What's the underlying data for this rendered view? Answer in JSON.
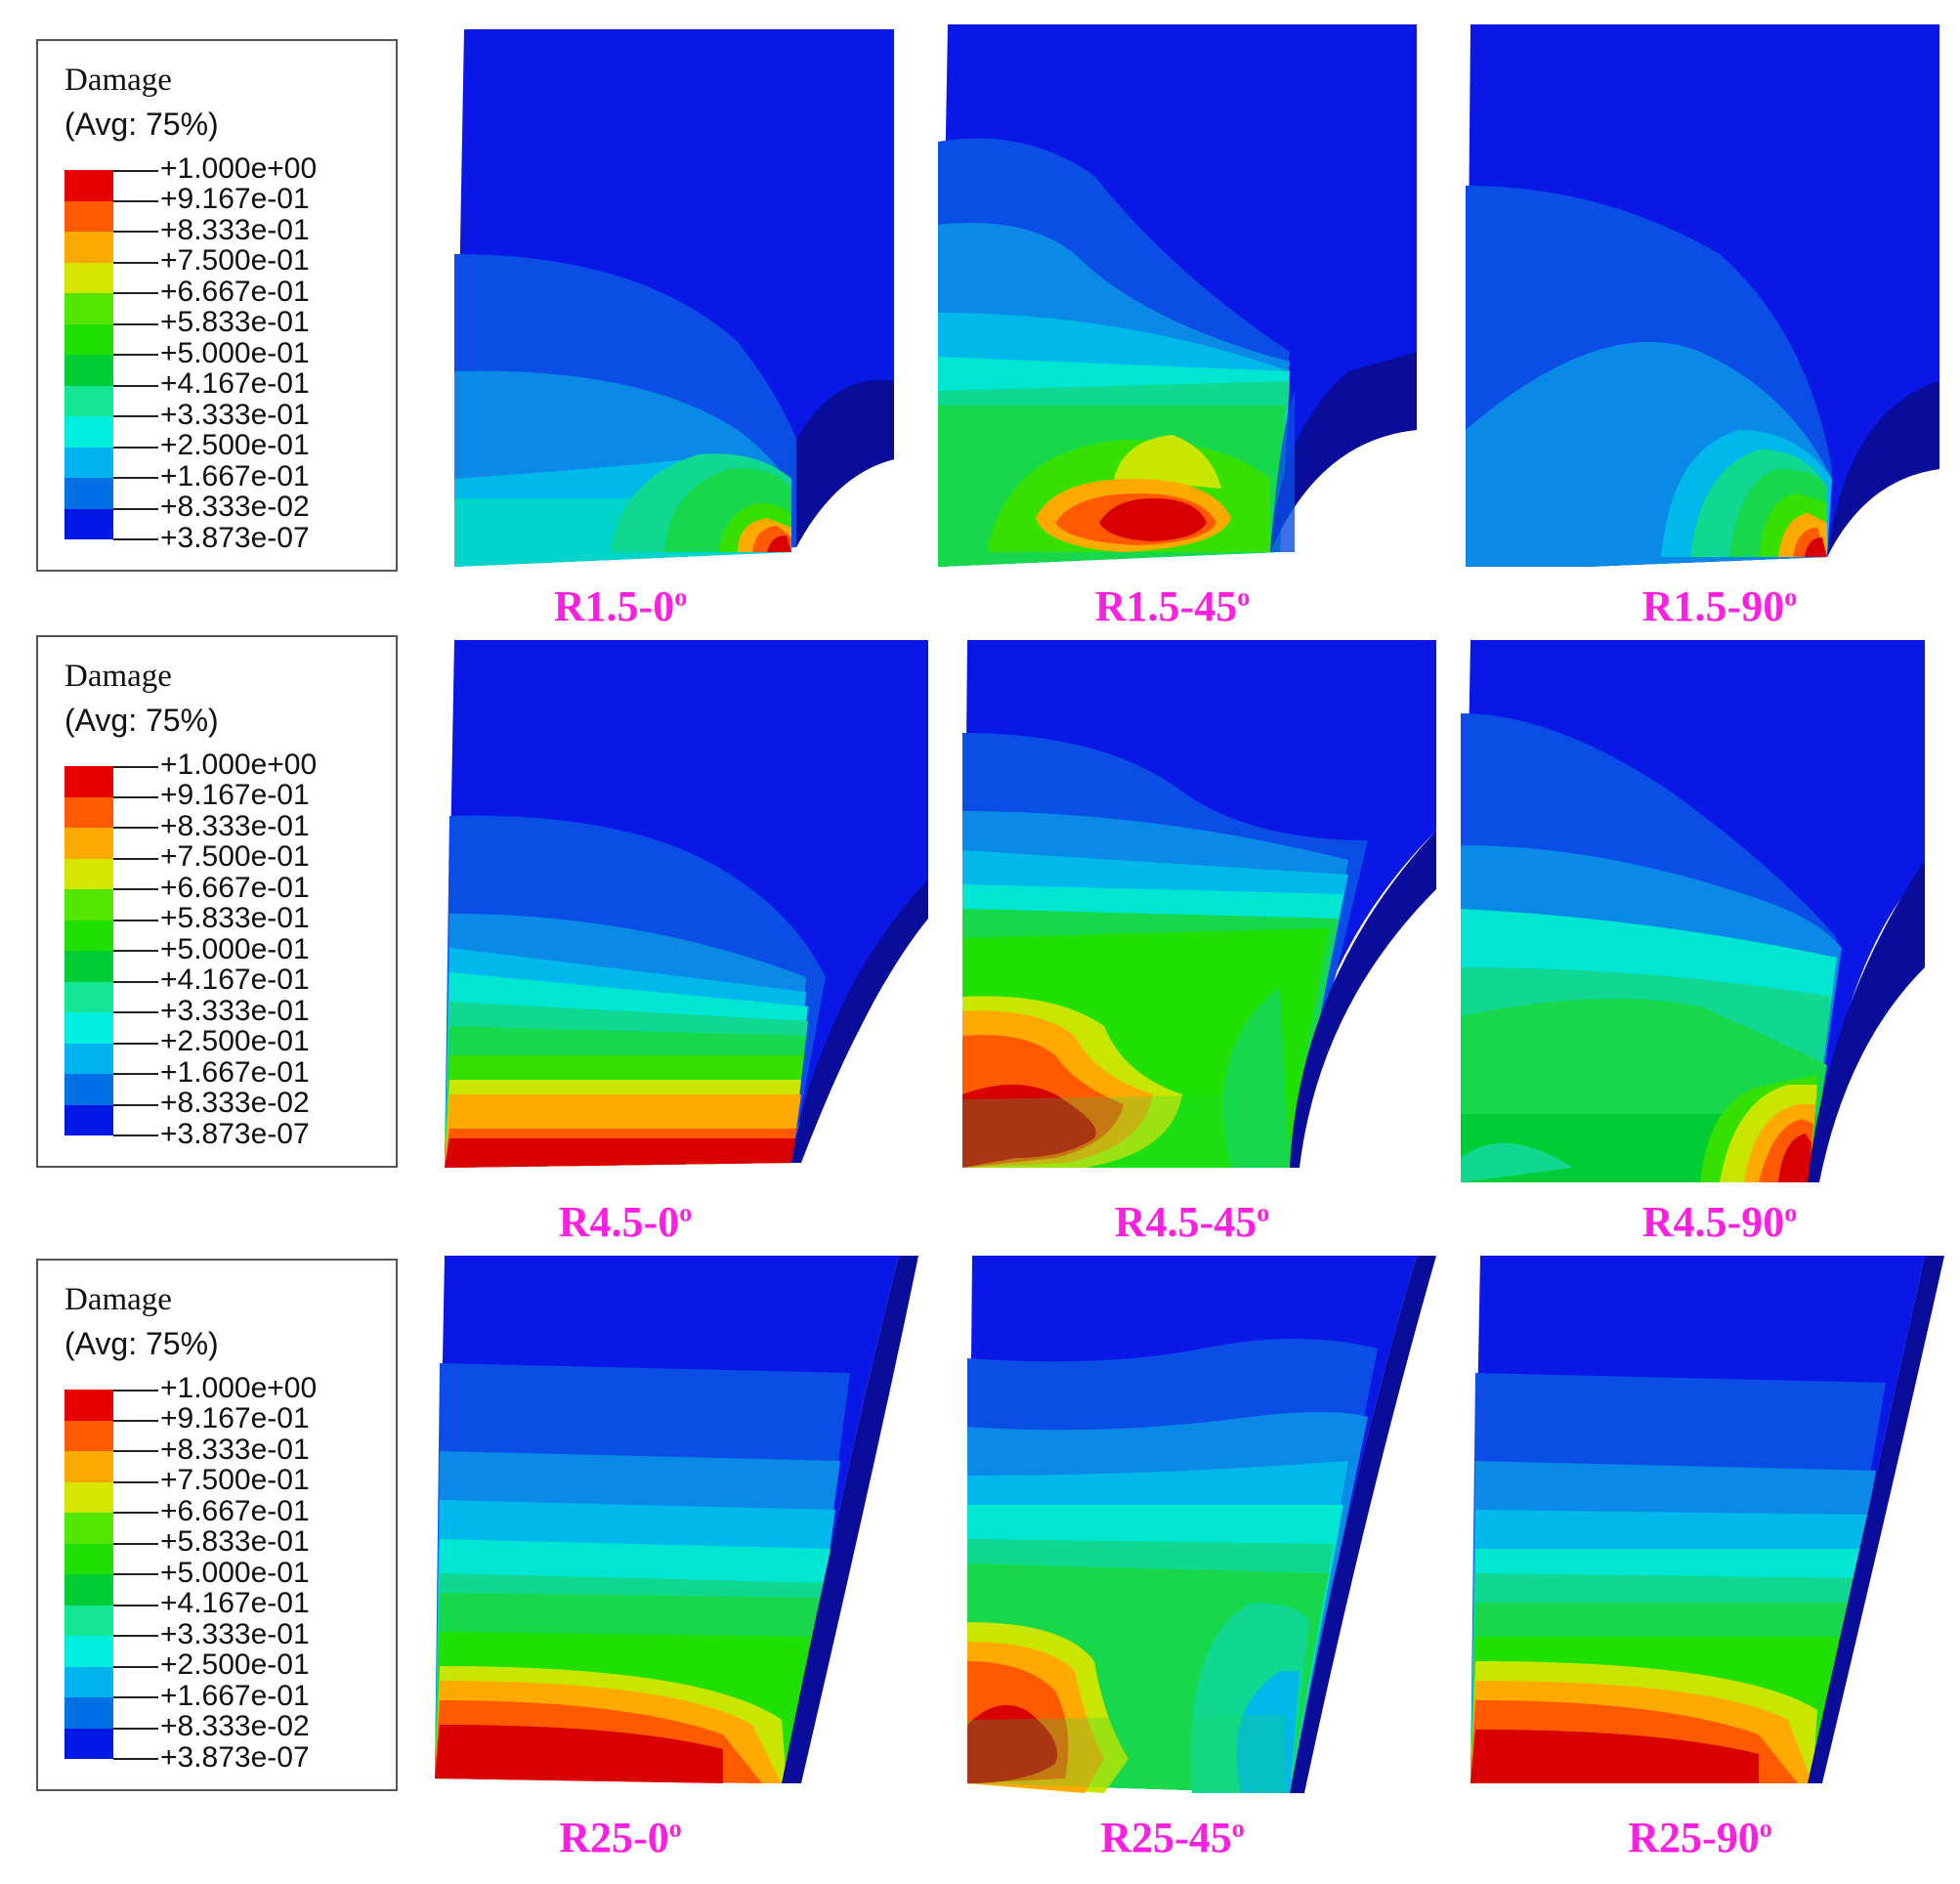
{
  "legend": {
    "title": "Damage",
    "avg": "(Avg: 75%)",
    "levels": [
      {
        "label": "+1.000e+00",
        "color": "#e60000"
      },
      {
        "label": "+9.167e-01",
        "color": "#ff5a00"
      },
      {
        "label": "+8.333e-01",
        "color": "#ffaa00"
      },
      {
        "label": "+7.500e-01",
        "color": "#d6e600"
      },
      {
        "label": "+6.667e-01",
        "color": "#52e600"
      },
      {
        "label": "+5.833e-01",
        "color": "#1fe000"
      },
      {
        "label": "+5.000e-01",
        "color": "#00cc33"
      },
      {
        "label": "+4.167e-01",
        "color": "#14e696"
      },
      {
        "label": "+3.333e-01",
        "color": "#00eedd"
      },
      {
        "label": "+2.500e-01",
        "color": "#00b4f0"
      },
      {
        "label": "+1.667e-01",
        "color": "#0070e6"
      },
      {
        "label": "+8.333e-02",
        "color": "#0018e6"
      },
      {
        "label": "+3.873e-07",
        "color": ""
      }
    ]
  },
  "captions": [
    {
      "main": "R1.5-0",
      "sup": "o"
    },
    {
      "main": "R1.5-45",
      "sup": "o"
    },
    {
      "main": "R1.5-90",
      "sup": "o"
    },
    {
      "main": "R4.5-0",
      "sup": "o"
    },
    {
      "main": "R4.5-45",
      "sup": "o"
    },
    {
      "main": "R4.5-90",
      "sup": "o"
    },
    {
      "main": "R25-0",
      "sup": "o"
    },
    {
      "main": "R25-45",
      "sup": "o"
    },
    {
      "main": "R25-90",
      "sup": "o"
    }
  ],
  "colors": {
    "caption": "#ff1fe0",
    "dark_blue": "#0a0c9a",
    "blue": "#0a18e6",
    "blue2": "#0a4ee6",
    "blue3": "#0a8ae6",
    "cyan2": "#00b8ea",
    "cyan": "#00e6d2",
    "teal": "#10d890",
    "green": "#16d84a",
    "green2": "#36e000",
    "yellow": "#c8e600",
    "orange": "#ffaa00",
    "orange2": "#ff5a00",
    "red": "#d80000"
  }
}
